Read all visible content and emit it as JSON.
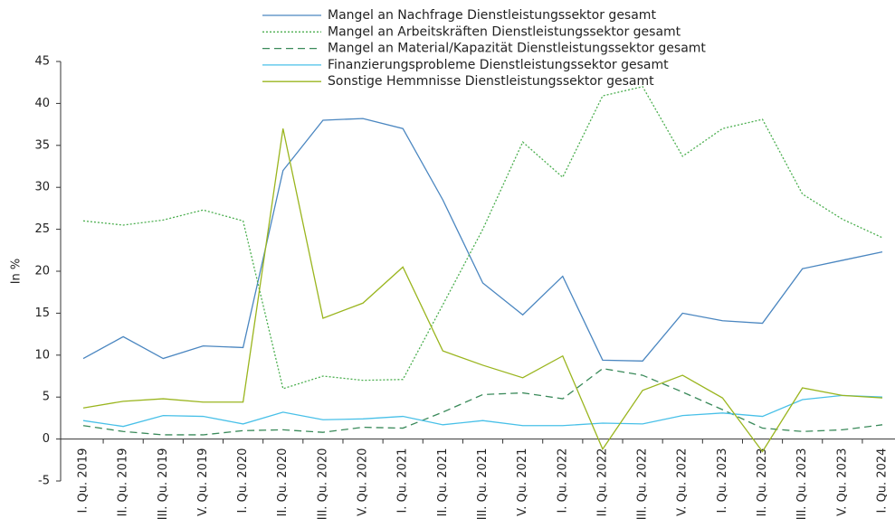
{
  "chart_data": {
    "type": "line",
    "y_label": "In %",
    "categories": [
      "I. Qu. 2019",
      "II. Qu. 2019",
      "III. Qu. 2019",
      "V. Qu. 2019",
      "I. Qu. 2020",
      "II. Qu. 2020",
      "III. Qu. 2020",
      "V. Qu. 2020",
      "I. Qu. 2021",
      "II. Qu. 2021",
      "III. Qu. 2021",
      "V. Qu. 2021",
      "I. Qu. 2022",
      "II. Qu. 2022",
      "III. Qu. 2022",
      "V. Qu. 2022",
      "I. Qu. 2023",
      "II. Qu. 2023",
      "III. Qu. 2023",
      "V. Qu. 2023",
      "I. Qu. 2024"
    ],
    "series": [
      {
        "name": "Mangel an Nachfrage Dienstleistungssektor gesamt",
        "color": "#4a86c0",
        "style": "solid",
        "values": [
          9.6,
          12.2,
          9.6,
          11.1,
          10.9,
          32,
          38,
          38.2,
          37,
          28.5,
          18.6,
          14.8,
          19.4,
          9.4,
          9.3,
          15,
          14.1,
          13.8,
          20.3,
          21.3,
          22.3
        ]
      },
      {
        "name": "Mangel an Arbeitskräften Dienstleistungssektor gesamt",
        "color": "#4caf50",
        "style": "dotted",
        "values": [
          26,
          25.5,
          26.1,
          27.3,
          26,
          6,
          7.5,
          7,
          7.1,
          16,
          25,
          35.4,
          31.2,
          40.9,
          42,
          33.7,
          37,
          38.1,
          29.2,
          26.2,
          24
        ]
      },
      {
        "name": "Mangel an Material/Kapazität Dienstleistungssektor gesamt",
        "color": "#3a8a5a",
        "style": "dashed",
        "values": [
          1.6,
          0.9,
          0.5,
          0.5,
          1.0,
          1.1,
          0.8,
          1.4,
          1.3,
          3.2,
          5.3,
          5.5,
          4.8,
          8.4,
          7.6,
          5.6,
          3.5,
          1.3,
          0.9,
          1.1,
          1.7
        ]
      },
      {
        "name": "Finanzierungsprobleme Dienstleistungssektor gesamt",
        "color": "#48c0e8",
        "style": "solid",
        "values": [
          2.2,
          1.5,
          2.8,
          2.7,
          1.8,
          3.2,
          2.3,
          2.4,
          2.7,
          1.7,
          2.2,
          1.6,
          1.6,
          1.9,
          1.8,
          2.8,
          3.1,
          2.7,
          4.7,
          5.2,
          5.0
        ]
      },
      {
        "name": "Sonstige Hemmnisse Dienstleistungssektor gesamt",
        "color": "#9ab51e",
        "style": "solid",
        "values": [
          3.7,
          4.5,
          4.8,
          4.4,
          4.4,
          37,
          14.4,
          16.2,
          20.5,
          10.5,
          8.8,
          7.3,
          9.9,
          -1.2,
          5.8,
          7.6,
          4.9,
          -1.5,
          6.1,
          5.2,
          4.9
        ]
      }
    ],
    "ylim": [
      -5,
      45
    ],
    "yticks": [
      -5,
      0,
      5,
      10,
      15,
      20,
      25,
      30,
      35,
      40,
      45
    ]
  }
}
